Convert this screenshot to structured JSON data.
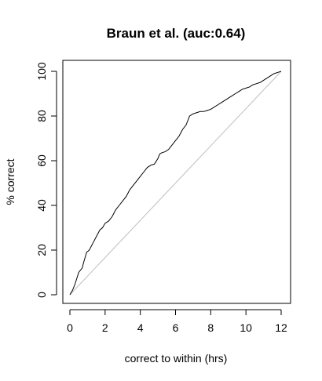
{
  "chart_data": {
    "type": "line",
    "title": "Braun et al. (auc:0.64)",
    "xlabel": "correct to within (hrs)",
    "ylabel": "% correct",
    "xlim": [
      0,
      12
    ],
    "ylim": [
      0,
      100
    ],
    "xticks": [
      "0",
      "2",
      "4",
      "6",
      "8",
      "10",
      "12"
    ],
    "yticks": [
      "0",
      "20",
      "40",
      "60",
      "80",
      "100"
    ],
    "grid": false,
    "legend": "none",
    "colors": {
      "curve": "#000000",
      "diagonal": "#bebebe",
      "frame": "#000000"
    },
    "series": [
      {
        "x": [
          0,
          0.15,
          0.3,
          0.5,
          0.7,
          0.8,
          0.95,
          1.1,
          1.3,
          1.5,
          1.7,
          1.85,
          2.0,
          2.2,
          2.4,
          2.6,
          2.8,
          3.0,
          3.2,
          3.4,
          3.6,
          3.8,
          4.0,
          4.2,
          4.4,
          4.6,
          4.8,
          5.0,
          5.1,
          5.2,
          5.4,
          5.6,
          5.8,
          6.0,
          6.2,
          6.4,
          6.6,
          6.8,
          7.0,
          7.2,
          7.4,
          7.6,
          7.8,
          8.0,
          8.2,
          8.4,
          8.6,
          8.8,
          9.0,
          9.2,
          9.4,
          9.6,
          9.8,
          10.0,
          10.2,
          10.4,
          10.6,
          10.8,
          11.0,
          11.2,
          11.4,
          11.6,
          11.8,
          12.0
        ],
        "y": [
          0,
          2,
          5,
          10,
          12,
          15,
          19,
          20,
          23,
          26,
          29,
          30,
          32,
          33,
          35,
          38,
          40,
          42,
          44,
          47,
          49,
          51,
          53,
          55,
          57,
          58,
          58.5,
          61,
          63,
          63.5,
          64,
          65,
          67,
          69,
          71,
          74,
          76,
          80,
          81,
          81.5,
          82,
          82,
          82.5,
          83,
          84,
          85,
          86,
          87,
          88,
          89,
          90,
          91,
          92,
          92.5,
          93,
          94,
          94.5,
          95,
          96,
          97,
          98,
          99,
          99.5,
          100
        ]
      }
    ]
  }
}
